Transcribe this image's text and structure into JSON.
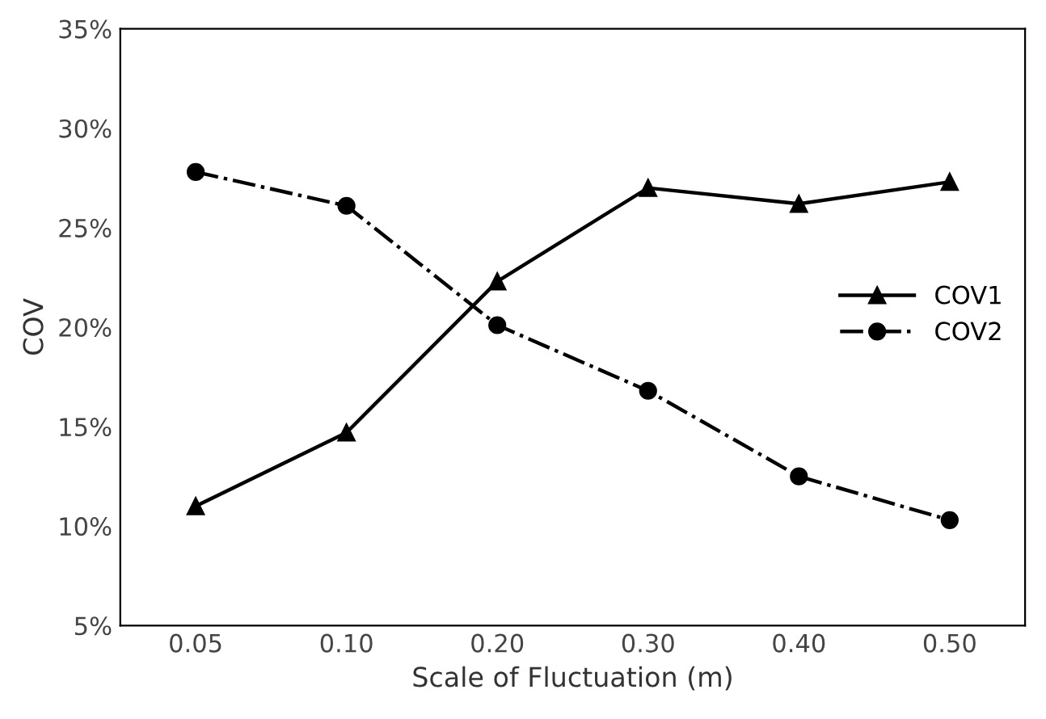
{
  "chart_data": {
    "type": "line",
    "xlabel": "Scale of Fluctuation (m)",
    "ylabel": "COV",
    "categories": [
      "0.05",
      "0.10",
      "0.20",
      "0.30",
      "0.40",
      "0.50"
    ],
    "series": [
      {
        "name": "COV1",
        "color": "#000000",
        "marker": "triangle",
        "line_style": "solid",
        "values": [
          11.0,
          14.7,
          22.3,
          27.0,
          26.2,
          27.3
        ]
      },
      {
        "name": "COV2",
        "color": "#000000",
        "marker": "circle",
        "line_style": "dashdot",
        "values": [
          27.8,
          26.1,
          20.1,
          16.8,
          12.5,
          10.3
        ]
      }
    ],
    "ylim": [
      5,
      35
    ],
    "yticks": [
      {
        "value": 5,
        "label": "5%"
      },
      {
        "value": 10,
        "label": "10%"
      },
      {
        "value": 15,
        "label": "15%"
      },
      {
        "value": 20,
        "label": "20%"
      },
      {
        "value": 25,
        "label": "25%"
      },
      {
        "value": 30,
        "label": "30%"
      },
      {
        "value": 35,
        "label": "35%"
      }
    ],
    "grid": false,
    "legend": "right"
  }
}
